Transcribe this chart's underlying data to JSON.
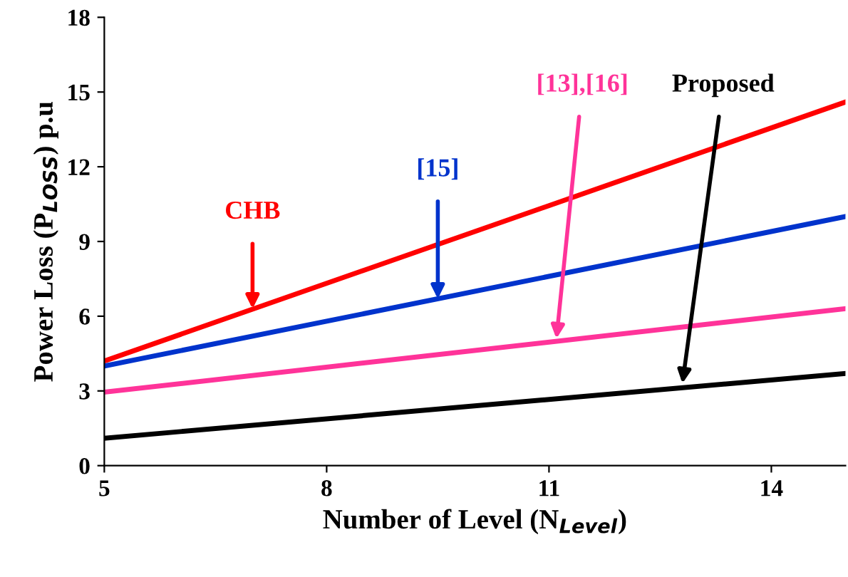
{
  "chart_data": {
    "type": "line",
    "xlabel": "Number of Level (N$_{Level}$)",
    "ylabel": "Power Loss (P$_{LOSS}$) p.u",
    "x": [
      5,
      15
    ],
    "series": [
      {
        "color": "#ff0000",
        "values": [
          4.2,
          14.6
        ]
      },
      {
        "color": "#0033cc",
        "values": [
          4.0,
          10.0
        ]
      },
      {
        "color": "#ff3399",
        "values": [
          2.95,
          6.3
        ]
      },
      {
        "color": "#000000",
        "values": [
          1.1,
          3.7
        ]
      }
    ],
    "annotations": [
      {
        "text": "CHB",
        "x": 7,
        "y": 6.3
      },
      {
        "text": "[15]",
        "x": 9.5,
        "y": 6.7
      },
      {
        "text": "[13],[16]",
        "x": 11.1,
        "y": 5.1
      },
      {
        "text": "Proposed",
        "x": 12.8,
        "y": 3.3
      }
    ],
    "xlim": [
      5,
      15
    ],
    "xticks": [
      5,
      8,
      11,
      14
    ],
    "ylim": [
      0,
      18
    ],
    "yticks": [
      0,
      3,
      6,
      9,
      12,
      15,
      18
    ],
    "grid": false,
    "legend": false,
    "marker": "none",
    "line_style": "solid"
  }
}
